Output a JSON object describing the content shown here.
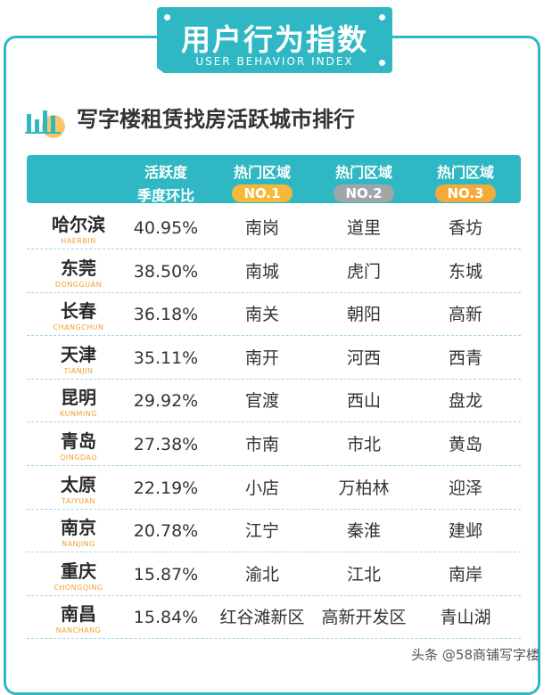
{
  "banner": {
    "title": "用户行为指数",
    "subtitle": "USER BEHAVIOR INDEX"
  },
  "section": {
    "title": "写字楼租赁找房活跃城市排行"
  },
  "header": {
    "activity": [
      "活跃度",
      "季度环比"
    ],
    "hot_label": "热门区域",
    "badges": [
      "NO.1",
      "NO.2",
      "NO.3"
    ],
    "badge_colors": [
      "#f5b83a",
      "#9ea6a8",
      "#f5a93a"
    ]
  },
  "rows": [
    {
      "city": "哈尔滨",
      "en": "HAERBIN",
      "rate": "40.95%",
      "d1": "南岗",
      "d2": "道里",
      "d3": "香坊"
    },
    {
      "city": "东莞",
      "en": "DONGGUAN",
      "rate": "38.50%",
      "d1": "南城",
      "d2": "虎门",
      "d3": "东城"
    },
    {
      "city": "长春",
      "en": "CHANGCHUN",
      "rate": "36.18%",
      "d1": "南关",
      "d2": "朝阳",
      "d3": "高新"
    },
    {
      "city": "天津",
      "en": "TIANJIN",
      "rate": "35.11%",
      "d1": "南开",
      "d2": "河西",
      "d3": "西青"
    },
    {
      "city": "昆明",
      "en": "KUNMING",
      "rate": "29.92%",
      "d1": "官渡",
      "d2": "西山",
      "d3": "盘龙"
    },
    {
      "city": "青岛",
      "en": "QINGDAO",
      "rate": "27.38%",
      "d1": "市南",
      "d2": "市北",
      "d3": "黄岛"
    },
    {
      "city": "太原",
      "en": "TAIYUAN",
      "rate": "22.19%",
      "d1": "小店",
      "d2": "万柏林",
      "d3": "迎泽"
    },
    {
      "city": "南京",
      "en": "NANJING",
      "rate": "20.78%",
      "d1": "江宁",
      "d2": "秦淮",
      "d3": "建邺"
    },
    {
      "city": "重庆",
      "en": "CHONGQING",
      "rate": "15.87%",
      "d1": "渝北",
      "d2": "江北",
      "d3": "南岸"
    },
    {
      "city": "南昌",
      "en": "NANCHANG",
      "rate": "15.84%",
      "d1": "红谷滩新区",
      "d2": "高新开发区",
      "d3": "青山湖"
    }
  ],
  "watermark": "头条 @58商铺写字楼"
}
